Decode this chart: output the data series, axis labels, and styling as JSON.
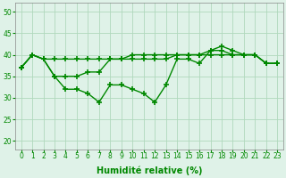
{
  "x": [
    0,
    1,
    2,
    3,
    4,
    5,
    6,
    7,
    8,
    9,
    10,
    11,
    12,
    13,
    14,
    15,
    16,
    17,
    18,
    19,
    20,
    21,
    22,
    23
  ],
  "line1": [
    37,
    40,
    39,
    35,
    35,
    35,
    36,
    36,
    39,
    39,
    40,
    40,
    40,
    40,
    40,
    40,
    40,
    41,
    41,
    40,
    40,
    40,
    38,
    38
  ],
  "line2": [
    37,
    40,
    39,
    39,
    39,
    39,
    39,
    39,
    39,
    39,
    39,
    39,
    39,
    39,
    40,
    40,
    40,
    40,
    40,
    40,
    40,
    40,
    38,
    38
  ],
  "line3": [
    37,
    40,
    39,
    35,
    32,
    32,
    31,
    29,
    33,
    33,
    32,
    31,
    29,
    33,
    39,
    39,
    38,
    41,
    42,
    41,
    40,
    40,
    38,
    38
  ],
  "bg_color": "#dff2e8",
  "grid_color": "#b0d8bc",
  "line_color": "#008800",
  "xlabel": "Humidité relative (%)",
  "ylim": [
    18,
    52
  ],
  "yticks": [
    20,
    25,
    30,
    35,
    40,
    45,
    50
  ],
  "xlim": [
    -0.5,
    23.5
  ],
  "tick_fontsize": 5.5,
  "xlabel_fontsize": 7
}
